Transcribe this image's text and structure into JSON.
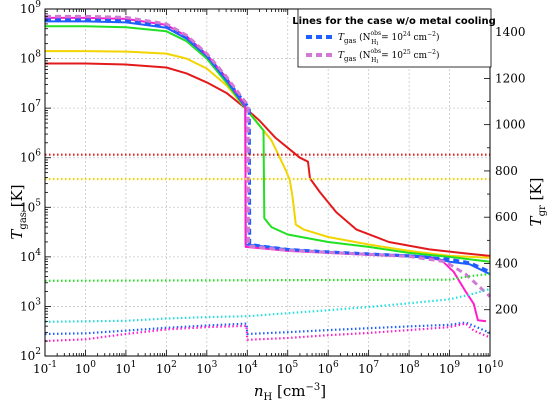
{
  "chart_data": {
    "type": "line",
    "xlabel": "n",
    "xlabel_sub": "H",
    "xlabel_unit": " [cm",
    "xlabel_unit_sup": "−3",
    "xlabel_unit_end": "]",
    "ylabel_left": "T",
    "ylabel_left_sub": "gas",
    "ylabel_left_unit": " [K]",
    "ylabel_right": "T",
    "ylabel_right_sub": "gr",
    "ylabel_right_unit": " [K]",
    "x_scale": "log",
    "y_left_scale": "log",
    "xlim_exp": [
      -1,
      10
    ],
    "ylim_left_exp": [
      2,
      9
    ],
    "ylim_right": [
      0,
      1500
    ],
    "grid": true,
    "x_tick_exponents": [
      "-1",
      "0",
      "1",
      "2",
      "3",
      "4",
      "5",
      "6",
      "7",
      "8",
      "9",
      "10"
    ],
    "y_left_tick_exponents": [
      "2",
      "3",
      "4",
      "5",
      "6",
      "7",
      "8",
      "9"
    ],
    "y_right_ticks": [
      "200",
      "400",
      "600",
      "800",
      "1000",
      "1200",
      "1400"
    ],
    "colors": {
      "red": "#e31a1c",
      "yellow": "#f2d400",
      "green": "#22e022",
      "blue": "#1f5fff",
      "magenta": "#ff1ecc",
      "cyan": "#22dede",
      "violet": "#d07ad6"
    },
    "legend": {
      "title": "Lines for the case w/o metal cooling",
      "placement": "top-right",
      "entries": [
        {
          "label": "T",
          "sub": "gas",
          "mid": " (N",
          "mid_sup": "obs",
          "mid_sub": "H",
          "mid_subsub": "I",
          "tail": " = 10",
          "tail_sup": "24",
          "end": " cm",
          "end_sup": "−2",
          "close": ")",
          "color": "#1f5fff"
        },
        {
          "label": "T",
          "sub": "gas",
          "mid": " (N",
          "mid_sup": "obs",
          "mid_sub": "H",
          "mid_subsub": "I",
          "tail": " = 10",
          "tail_sup": "25",
          "end": " cm",
          "end_sup": "−2",
          "close": ")",
          "color": "#d07ad6"
        }
      ]
    },
    "series": [
      {
        "color_key": "red",
        "axis": "left",
        "style": "solid",
        "points": [
          [
            -1,
            7.9
          ],
          [
            0,
            7.9
          ],
          [
            1,
            7.88
          ],
          [
            2,
            7.82
          ],
          [
            2.5,
            7.7
          ],
          [
            3,
            7.52
          ],
          [
            3.5,
            7.3
          ],
          [
            3.95,
            7.0
          ],
          [
            4.3,
            6.75
          ],
          [
            4.7,
            6.4
          ],
          [
            5.3,
            6.0
          ],
          [
            5.5,
            5.92
          ],
          [
            5.55,
            5.58
          ],
          [
            5.8,
            5.3
          ],
          [
            6.2,
            4.9
          ],
          [
            6.7,
            4.55
          ],
          [
            7.5,
            4.3
          ],
          [
            8.5,
            4.15
          ],
          [
            9.5,
            4.06
          ],
          [
            10,
            4.02
          ]
        ]
      },
      {
        "color_key": "yellow",
        "axis": "left",
        "style": "solid",
        "points": [
          [
            -1,
            8.15
          ],
          [
            0,
            8.15
          ],
          [
            1,
            8.14
          ],
          [
            2,
            8.1
          ],
          [
            2.5,
            8.0
          ],
          [
            3,
            7.8
          ],
          [
            3.5,
            7.45
          ],
          [
            3.95,
            7.0
          ],
          [
            4.2,
            6.75
          ],
          [
            4.6,
            6.35
          ],
          [
            4.95,
            5.75
          ],
          [
            5.05,
            5.55
          ],
          [
            5.12,
            5.2
          ],
          [
            5.2,
            4.65
          ],
          [
            5.4,
            4.55
          ],
          [
            6,
            4.4
          ],
          [
            7,
            4.25
          ],
          [
            8,
            4.12
          ],
          [
            9,
            4.02
          ],
          [
            10,
            3.98
          ]
        ]
      },
      {
        "color_key": "green",
        "axis": "left",
        "style": "solid",
        "points": [
          [
            -1,
            8.65
          ],
          [
            0,
            8.65
          ],
          [
            1,
            8.63
          ],
          [
            2,
            8.55
          ],
          [
            2.5,
            8.35
          ],
          [
            3,
            8.0
          ],
          [
            3.5,
            7.5
          ],
          [
            3.95,
            7.0
          ],
          [
            4.2,
            6.75
          ],
          [
            4.4,
            6.55
          ],
          [
            4.42,
            4.78
          ],
          [
            4.6,
            4.6
          ],
          [
            5,
            4.45
          ],
          [
            6,
            4.3
          ],
          [
            7,
            4.2
          ],
          [
            8,
            4.08
          ],
          [
            9,
            4.0
          ],
          [
            10,
            3.9
          ]
        ]
      },
      {
        "color_key": "blue",
        "axis": "left",
        "style": "solid",
        "points": [
          [
            -1,
            8.75
          ],
          [
            0,
            8.75
          ],
          [
            1,
            8.73
          ],
          [
            2,
            8.62
          ],
          [
            2.5,
            8.4
          ],
          [
            3,
            8.05
          ],
          [
            3.5,
            7.55
          ],
          [
            3.95,
            7.02
          ],
          [
            3.96,
            4.25
          ],
          [
            4.5,
            4.2
          ],
          [
            5,
            4.15
          ],
          [
            6,
            4.1
          ],
          [
            7,
            4.06
          ],
          [
            8,
            4.03
          ],
          [
            8.5,
            4.0
          ],
          [
            9,
            3.9
          ],
          [
            9.5,
            3.85
          ],
          [
            9.8,
            3.73
          ],
          [
            10,
            3.65
          ]
        ]
      },
      {
        "color_key": "magenta",
        "axis": "left",
        "style": "solid",
        "points": [
          [
            -1,
            8.82
          ],
          [
            0,
            8.82
          ],
          [
            1,
            8.8
          ],
          [
            2,
            8.68
          ],
          [
            2.5,
            8.45
          ],
          [
            3,
            8.08
          ],
          [
            3.5,
            7.6
          ],
          [
            3.95,
            7.05
          ],
          [
            3.96,
            4.2
          ],
          [
            4.5,
            4.16
          ],
          [
            5,
            4.12
          ],
          [
            6,
            4.08
          ],
          [
            7,
            4.04
          ],
          [
            8,
            4.01
          ],
          [
            8.5,
            3.98
          ],
          [
            8.8,
            3.93
          ],
          [
            9.1,
            3.7
          ],
          [
            9.4,
            3.3
          ],
          [
            9.6,
            3.05
          ],
          [
            9.7,
            2.72
          ],
          [
            9.9,
            2.7
          ]
        ]
      },
      {
        "color_key": "blue",
        "axis": "left",
        "style": "dashed",
        "points": [
          [
            -1,
            8.78
          ],
          [
            0,
            8.78
          ],
          [
            1,
            8.76
          ],
          [
            2,
            8.64
          ],
          [
            2.5,
            8.42
          ],
          [
            3,
            8.06
          ],
          [
            3.5,
            7.56
          ],
          [
            4.05,
            7.0
          ],
          [
            4.06,
            4.25
          ],
          [
            5,
            4.15
          ],
          [
            6,
            4.1
          ],
          [
            7,
            4.06
          ],
          [
            8,
            4.02
          ],
          [
            9,
            3.95
          ],
          [
            9.5,
            3.88
          ],
          [
            10,
            3.7
          ]
        ]
      },
      {
        "color_key": "violet",
        "axis": "left",
        "style": "dashed",
        "points": [
          [
            -1,
            8.85
          ],
          [
            0,
            8.85
          ],
          [
            1,
            8.83
          ],
          [
            2,
            8.7
          ],
          [
            2.5,
            8.47
          ],
          [
            3,
            8.1
          ],
          [
            3.5,
            7.62
          ],
          [
            4.02,
            7.05
          ],
          [
            4.03,
            4.22
          ],
          [
            5,
            4.13
          ],
          [
            6,
            4.09
          ],
          [
            7,
            4.05
          ],
          [
            8,
            4.01
          ],
          [
            8.9,
            3.9
          ],
          [
            9.4,
            3.65
          ],
          [
            9.6,
            3.5
          ],
          [
            9.8,
            3.35
          ],
          [
            10,
            3.2
          ]
        ]
      },
      {
        "color_key": "red",
        "axis": "right",
        "style": "dotted",
        "points": [
          [
            -1,
            870
          ],
          [
            10,
            870
          ]
        ]
      },
      {
        "color_key": "yellow",
        "axis": "right",
        "style": "dotted",
        "points": [
          [
            -1,
            765
          ],
          [
            10,
            765
          ]
        ]
      },
      {
        "color_key": "green",
        "axis": "right",
        "style": "dotted",
        "points": [
          [
            -1,
            325
          ],
          [
            9,
            330
          ],
          [
            9.5,
            345
          ],
          [
            10,
            355
          ]
        ]
      },
      {
        "color_key": "cyan",
        "axis": "right",
        "style": "dotted",
        "points": [
          [
            -1,
            148
          ],
          [
            1,
            152
          ],
          [
            2,
            162
          ],
          [
            3,
            168
          ],
          [
            4,
            172
          ],
          [
            5,
            185
          ],
          [
            6,
            198
          ],
          [
            7,
            212
          ],
          [
            8,
            228
          ],
          [
            9,
            245
          ],
          [
            9.5,
            265
          ],
          [
            9.8,
            280
          ],
          [
            10,
            290
          ]
        ]
      },
      {
        "color_key": "blue",
        "axis": "right",
        "style": "dotted",
        "points": [
          [
            -1,
            95
          ],
          [
            0,
            98
          ],
          [
            1,
            110
          ],
          [
            2,
            122
          ],
          [
            3,
            132
          ],
          [
            3.98,
            140
          ],
          [
            4.0,
            95
          ],
          [
            5,
            103
          ],
          [
            6,
            112
          ],
          [
            7,
            120
          ],
          [
            8,
            128
          ],
          [
            9,
            135
          ],
          [
            9.4,
            145
          ],
          [
            9.6,
            130
          ],
          [
            10,
            100
          ]
        ]
      },
      {
        "color_key": "magenta",
        "axis": "right",
        "style": "dotted",
        "points": [
          [
            -1,
            65
          ],
          [
            0,
            72
          ],
          [
            1,
            95
          ],
          [
            2,
            115
          ],
          [
            3,
            125
          ],
          [
            3.98,
            130
          ],
          [
            4.0,
            70
          ],
          [
            5,
            78
          ],
          [
            6,
            90
          ],
          [
            7,
            100
          ],
          [
            8,
            112
          ],
          [
            9,
            125
          ],
          [
            9.4,
            140
          ],
          [
            9.6,
            110
          ],
          [
            10,
            80
          ]
        ]
      }
    ]
  }
}
